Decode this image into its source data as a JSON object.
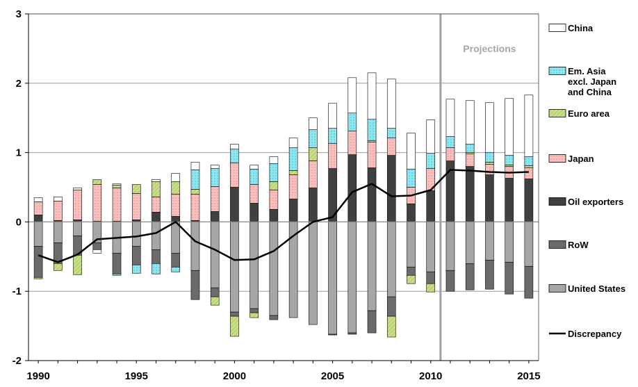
{
  "chart_data": {
    "type": "bar",
    "stacked": true,
    "x": [
      1990,
      1991,
      1992,
      1993,
      1994,
      1995,
      1996,
      1997,
      1998,
      1999,
      2000,
      2001,
      2002,
      2003,
      2004,
      2005,
      2006,
      2007,
      2008,
      2009,
      2010,
      2011,
      2012,
      2013,
      2014,
      2015
    ],
    "x_ticks": [
      "1990",
      "1995",
      "2000",
      "2005",
      "2010",
      "2015"
    ],
    "y_ticks": [
      "-2",
      "-1",
      "0",
      "1",
      "2",
      "3"
    ],
    "ylim": [
      -2,
      3
    ],
    "xlim": [
      1989.5,
      2015.5
    ],
    "grid": "horizontal",
    "legend_position": "right",
    "annotation": {
      "text": "Projections",
      "x": 2010.5
    },
    "series": [
      {
        "name": "United States",
        "color": "#a6a6a6",
        "pattern": "none",
        "values": [
          -0.35,
          -0.3,
          -0.2,
          -0.3,
          -0.45,
          -0.35,
          -0.4,
          -0.45,
          -0.7,
          -0.95,
          -1.3,
          -1.25,
          -1.35,
          -1.38,
          -1.48,
          -1.62,
          -1.6,
          -1.28,
          -1.08,
          -0.65,
          -0.72,
          -0.7,
          -0.6,
          -0.55,
          -0.58,
          -0.64
        ]
      },
      {
        "name": "RoW",
        "color": "#6b6b6b",
        "pattern": "none",
        "values": [
          -0.45,
          -0.3,
          -0.28,
          -0.1,
          -0.3,
          -0.27,
          -0.2,
          -0.2,
          -0.42,
          -0.13,
          -0.06,
          -0.06,
          -0.06,
          0,
          0,
          -0.01,
          -0.02,
          -0.32,
          -0.28,
          -0.12,
          -0.17,
          -0.3,
          -0.38,
          -0.42,
          -0.46,
          -0.46
        ]
      },
      {
        "name": "Oil exporters",
        "color": "#404040",
        "pattern": "none",
        "values": [
          0.1,
          0.02,
          0.03,
          0.01,
          0.01,
          0.03,
          0.14,
          0.08,
          0.02,
          0.15,
          0.5,
          0.27,
          0.18,
          0.33,
          0.49,
          0.77,
          0.97,
          0.78,
          0.96,
          0.26,
          0.45,
          0.88,
          0.8,
          0.68,
          0.63,
          0.62
        ]
      },
      {
        "name": "Japan",
        "color": "#f7bfbd",
        "pattern": "dots",
        "values": [
          0.19,
          0.28,
          0.43,
          0.53,
          0.48,
          0.38,
          0.22,
          0.32,
          0.38,
          0.36,
          0.35,
          0.27,
          0.28,
          0.35,
          0.39,
          0.36,
          0.34,
          0.37,
          0.25,
          0.24,
          0.32,
          0.19,
          0.18,
          0.15,
          0.17,
          0.16
        ]
      },
      {
        "name": "Euro area",
        "color": "#c9df8a",
        "pattern": "hatch",
        "values": [
          -0.02,
          -0.1,
          -0.28,
          0.07,
          0.04,
          0.13,
          0.22,
          0.18,
          0.07,
          -0.12,
          -0.29,
          -0.07,
          0.12,
          0.06,
          0.19,
          0,
          0,
          0.02,
          -0.3,
          -0.12,
          -0.12,
          0,
          0.02,
          0.03,
          0.02,
          0.03
        ]
      },
      {
        "name": "Em. Asia excl. Japan and China",
        "color": "#8fe6f0",
        "pattern": "dots",
        "values": [
          0,
          0,
          0,
          0,
          -0.02,
          -0.12,
          -0.15,
          -0.07,
          0.28,
          0.26,
          0.2,
          0.22,
          0.26,
          0.33,
          0.26,
          0.22,
          0.26,
          0.31,
          0.14,
          0.26,
          0.22,
          0.16,
          0.12,
          0.14,
          0.14,
          0.13
        ]
      },
      {
        "name": "China",
        "color": "#ffffff",
        "pattern": "none",
        "values": [
          0.06,
          0.06,
          0.03,
          -0.05,
          0.02,
          0,
          0.03,
          0.12,
          0.11,
          0.05,
          0.07,
          0.06,
          0.1,
          0.14,
          0.17,
          0.36,
          0.51,
          0.67,
          0.71,
          0.52,
          0.48,
          0.54,
          0.63,
          0.72,
          0.82,
          0.89
        ]
      },
      {
        "name": "Discrepancy",
        "color": "#000000",
        "type": "line",
        "values": [
          -0.48,
          -0.58,
          -0.47,
          -0.25,
          -0.23,
          -0.21,
          -0.16,
          0,
          -0.28,
          -0.4,
          -0.55,
          -0.54,
          -0.42,
          -0.2,
          0,
          0.07,
          0.43,
          0.55,
          0.37,
          0.38,
          0.46,
          0.75,
          0.74,
          0.72,
          0.71,
          0.72
        ]
      }
    ],
    "legend_order": [
      "China",
      "Em. Asia excl. Japan and China",
      "Euro area",
      "Japan",
      "Oil exporters",
      "RoW",
      "United States",
      "Discrepancy"
    ],
    "legend_label_lines": {
      "China": [
        "China"
      ],
      "Em. Asia excl. Japan and China": [
        "Em. Asia",
        "excl. Japan",
        "and China"
      ],
      "Euro area": [
        "Euro area"
      ],
      "Japan": [
        "Japan"
      ],
      "Oil exporters": [
        "Oil exporters"
      ],
      "RoW": [
        "RoW"
      ],
      "United States": [
        "United States"
      ],
      "Discrepancy": [
        "Discrepancy"
      ]
    }
  }
}
